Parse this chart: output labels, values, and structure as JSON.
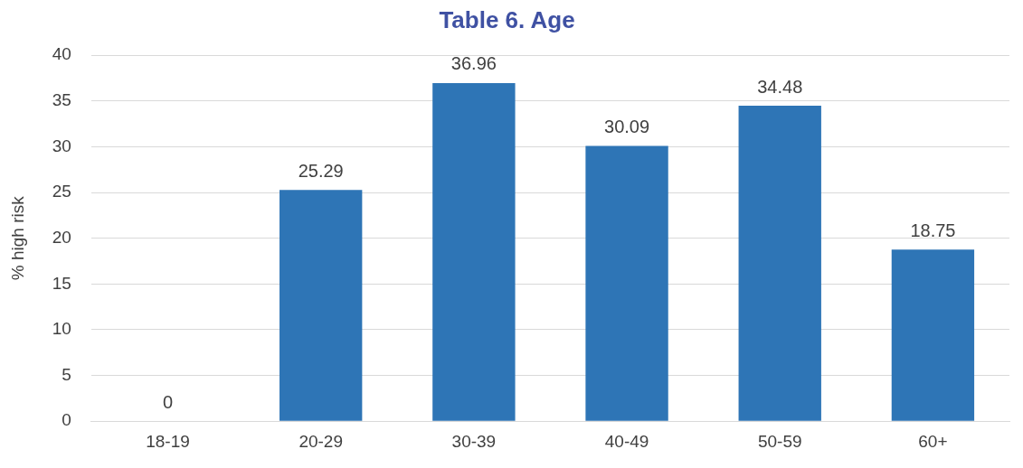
{
  "chart_data": {
    "type": "bar",
    "title": "Table 6. Age",
    "ylabel": "% high risk",
    "categories": [
      "18-19",
      "20-29",
      "30-39",
      "40-49",
      "50-59",
      "60+"
    ],
    "values": [
      0,
      25.29,
      36.96,
      30.09,
      34.48,
      18.75
    ],
    "color": "#2e75b6",
    "ylim": [
      0,
      40
    ],
    "yticks": [
      0,
      5,
      10,
      15,
      20,
      25,
      30,
      35,
      40
    ],
    "grid": "y",
    "data_labels": true,
    "legend": false
  }
}
